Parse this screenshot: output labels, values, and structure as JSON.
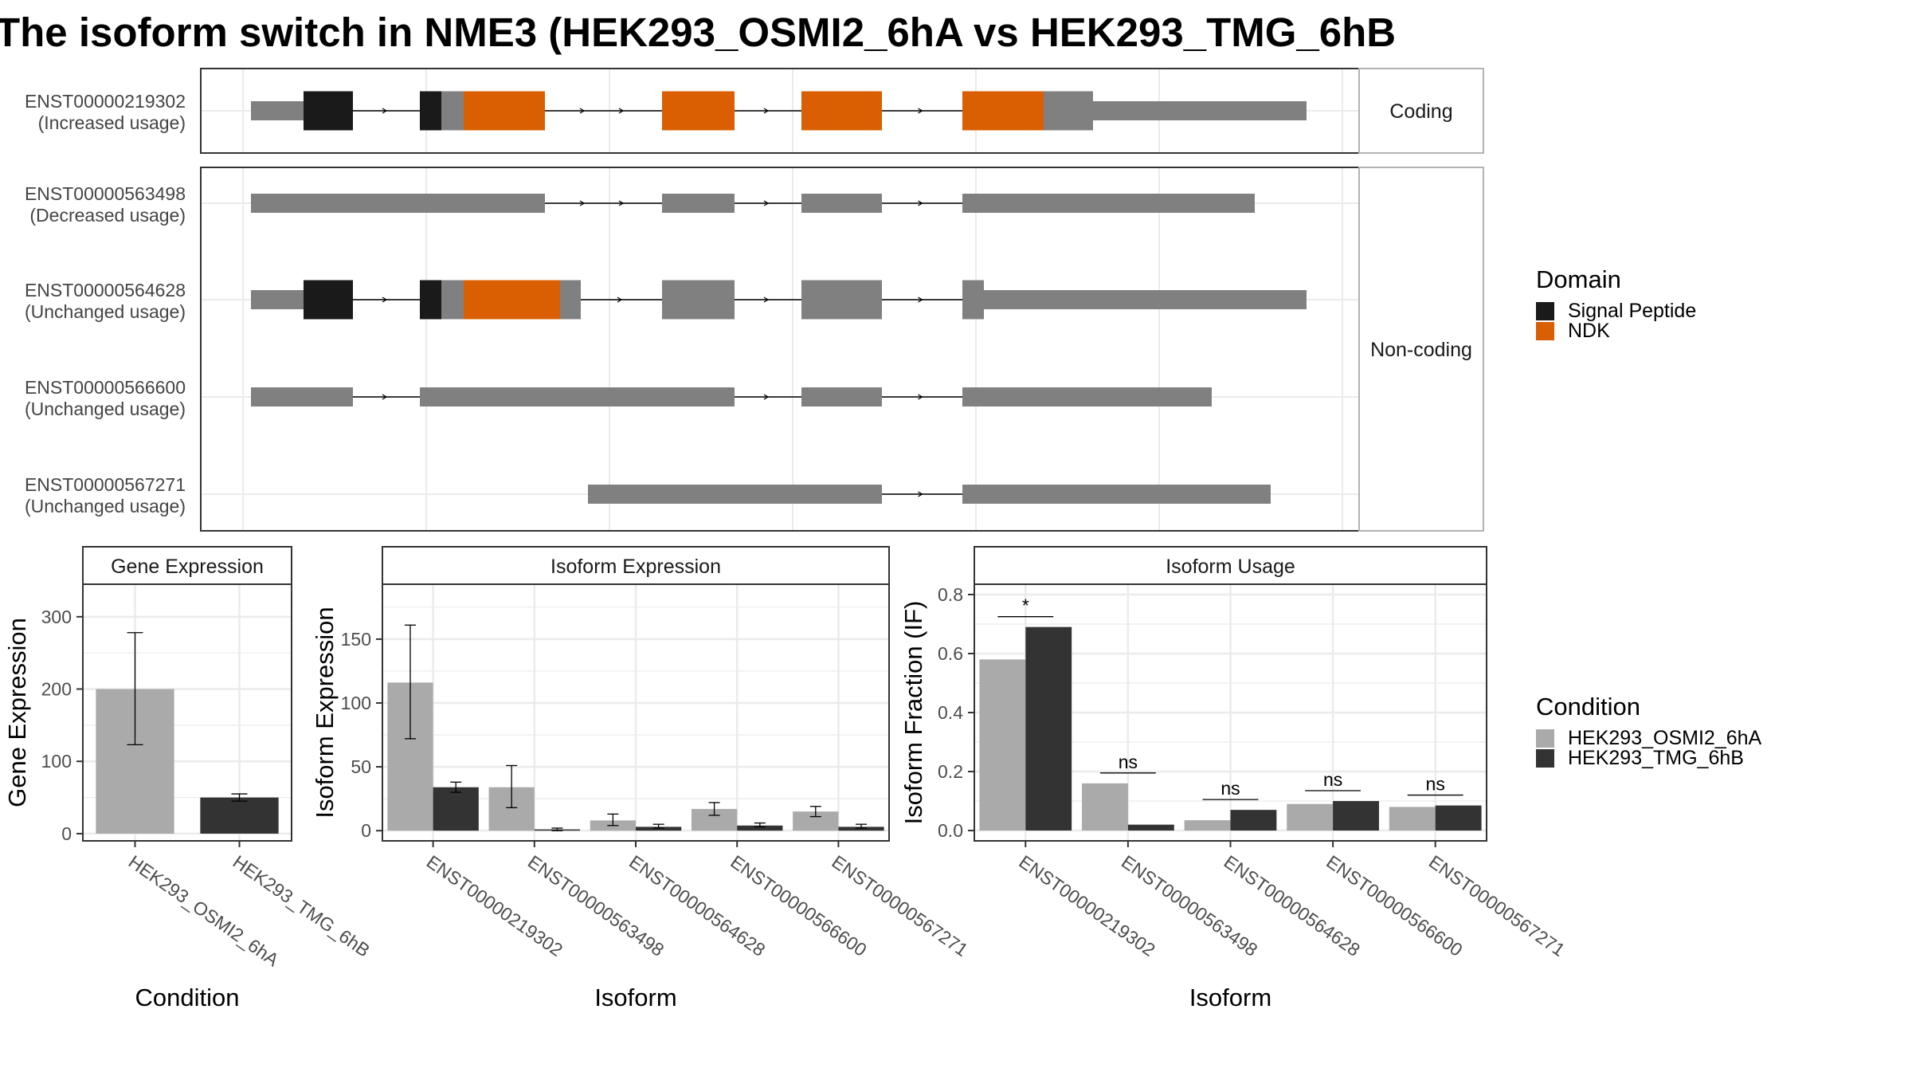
{
  "title": "The isoform switch in NME3 (HEK293_OSMI2_6hA vs HEK293_TMG_6hB",
  "colors": {
    "exon": "#808080",
    "signal_peptide": "#1a1a1a",
    "ndk": "#d95f02",
    "condition_a": "#aaaaaa",
    "condition_b": "#333333",
    "grid": "#ebebeb",
    "strip_bg": "#ffffff"
  },
  "structure": {
    "panels": [
      {
        "strip": "Coding",
        "isoforms": [
          0
        ]
      },
      {
        "strip": "Non-coding",
        "isoforms": [
          1,
          2,
          3,
          4
        ]
      }
    ],
    "isoforms": [
      {
        "id": "ENST00000219302",
        "label": "(Increased usage)"
      },
      {
        "id": "ENST00000563498",
        "label": "(Decreased usage)"
      },
      {
        "id": "ENST00000564628",
        "label": "(Unchanged usage)"
      },
      {
        "id": "ENST00000566600",
        "label": "(Unchanged usage)"
      },
      {
        "id": "ENST00000567271",
        "label": "(Unchanged usage)"
      }
    ]
  },
  "legend_domain": {
    "title": "Domain",
    "items": [
      {
        "label": "Signal Peptide",
        "color": "#1a1a1a"
      },
      {
        "label": "NDK",
        "color": "#d95f02"
      }
    ]
  },
  "legend_condition": {
    "title": "Condition",
    "items": [
      {
        "label": "HEK293_OSMI2_6hA",
        "color": "#aaaaaa"
      },
      {
        "label": "HEK293_TMG_6hB",
        "color": "#333333"
      }
    ]
  },
  "chart_data": [
    {
      "type": "bar",
      "title": "Gene Expression",
      "xlabel": "Condition",
      "ylabel": "Gene Expression",
      "categories": [
        "HEK293_OSMI2_6hA",
        "HEK293_TMG_6hB"
      ],
      "values": [
        200,
        50
      ],
      "error_low": [
        123,
        45
      ],
      "error_high": [
        278,
        55
      ],
      "ylim": [
        -10,
        345
      ],
      "yticks": [
        0,
        100,
        200,
        300
      ]
    },
    {
      "type": "bar",
      "title": "Isoform Expression",
      "xlabel": "Isoform",
      "ylabel": "Isoform Expression",
      "categories": [
        "ENST00000219302",
        "ENST00000563498",
        "ENST00000564628",
        "ENST00000566600",
        "ENST00000567271"
      ],
      "series": [
        {
          "name": "HEK293_OSMI2_6hA",
          "values": [
            116,
            34,
            8,
            17,
            15
          ],
          "error_low": [
            72,
            18,
            4,
            12,
            11
          ],
          "error_high": [
            161,
            51,
            13,
            22,
            19
          ]
        },
        {
          "name": "HEK293_TMG_6hB",
          "values": [
            34,
            1,
            3,
            4,
            3
          ],
          "error_low": [
            30,
            0,
            2,
            3,
            2
          ],
          "error_high": [
            38,
            2,
            5,
            6,
            5
          ]
        }
      ],
      "ylim": [
        -8,
        193
      ],
      "yticks": [
        0,
        50,
        100,
        150
      ]
    },
    {
      "type": "bar",
      "title": "Isoform Usage",
      "xlabel": "Isoform",
      "ylabel": "Isoform Fraction (IF)",
      "categories": [
        "ENST00000219302",
        "ENST00000563498",
        "ENST00000564628",
        "ENST00000566600",
        "ENST00000567271"
      ],
      "series": [
        {
          "name": "HEK293_OSMI2_6hA",
          "values": [
            0.58,
            0.16,
            0.035,
            0.09,
            0.08
          ]
        },
        {
          "name": "HEK293_TMG_6hB",
          "values": [
            0.69,
            0.02,
            0.07,
            0.1,
            0.085
          ]
        }
      ],
      "significance": [
        "*",
        "ns",
        "ns",
        "ns",
        "ns"
      ],
      "ylim": [
        -0.035,
        0.835
      ],
      "yticks": [
        0.0,
        0.2,
        0.4,
        0.6,
        0.8
      ],
      "ytick_labels": [
        "0.0",
        "0.2",
        "0.4",
        "0.6",
        "0.8"
      ]
    }
  ]
}
